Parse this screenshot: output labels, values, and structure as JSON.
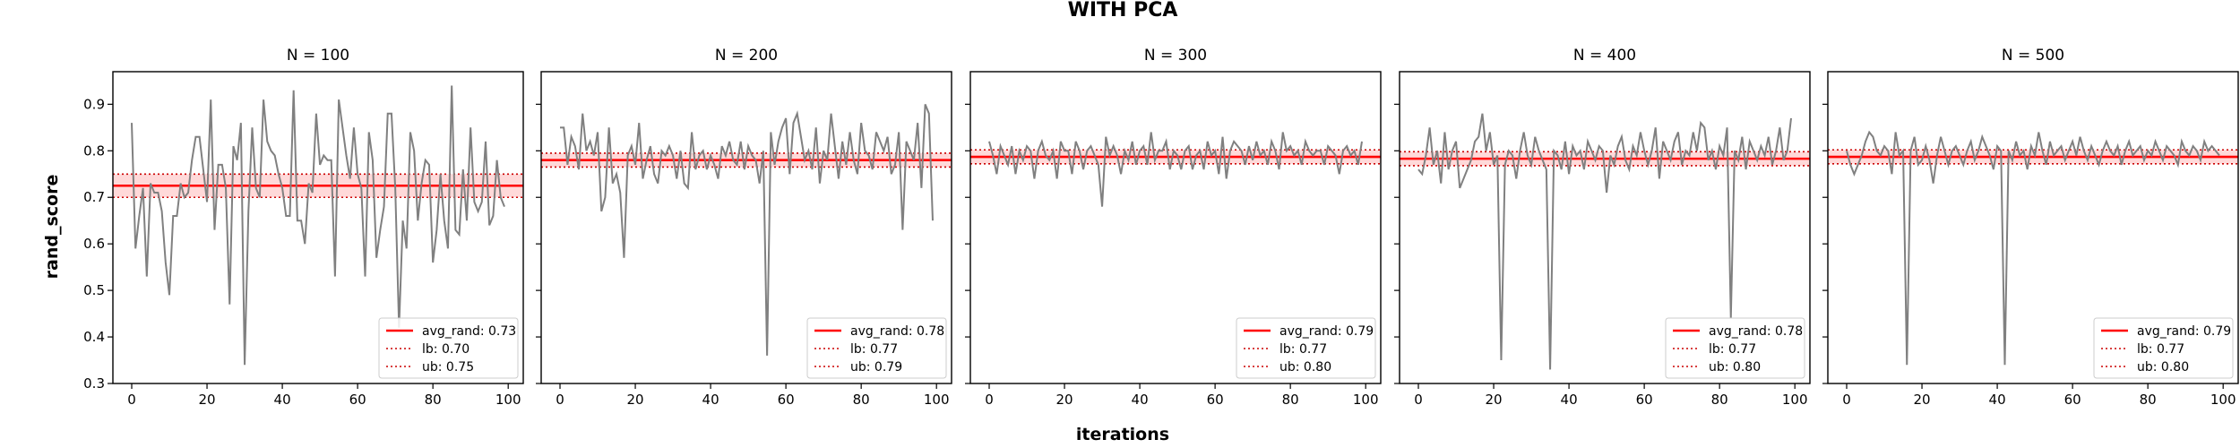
{
  "figure": {
    "suptitle": "WITH PCA",
    "xlabel": "iterations",
    "ylabel": "rand_score"
  },
  "colors": {
    "series": "#808080",
    "mean_line": "#ff0000",
    "band_fill": "#ffd9d9",
    "bound_line": "#cc0000"
  },
  "chart_data": [
    {
      "type": "line",
      "title": "N = 100",
      "xlim": [
        -5,
        104
      ],
      "ylim": [
        0.3,
        0.97
      ],
      "xticks": [
        0,
        20,
        40,
        60,
        80,
        100
      ],
      "yticks": [
        0.3,
        0.4,
        0.5,
        0.6,
        0.7,
        0.8,
        0.9
      ],
      "ytick_labels_visible": true,
      "grid": false,
      "avg": 0.725,
      "lb": 0.7,
      "ub": 0.75,
      "legend_position": "lower-right",
      "legend": [
        "avg_rand: 0.73",
        "lb: 0.70",
        "ub: 0.75"
      ],
      "y": [
        0.86,
        0.59,
        0.66,
        0.72,
        0.53,
        0.73,
        0.71,
        0.71,
        0.67,
        0.56,
        0.49,
        0.66,
        0.66,
        0.73,
        0.7,
        0.71,
        0.78,
        0.83,
        0.83,
        0.76,
        0.69,
        0.91,
        0.63,
        0.77,
        0.77,
        0.72,
        0.47,
        0.81,
        0.78,
        0.86,
        0.34,
        0.67,
        0.85,
        0.72,
        0.7,
        0.91,
        0.82,
        0.8,
        0.79,
        0.75,
        0.72,
        0.66,
        0.66,
        0.93,
        0.65,
        0.65,
        0.6,
        0.73,
        0.71,
        0.88,
        0.77,
        0.79,
        0.78,
        0.78,
        0.53,
        0.91,
        0.85,
        0.79,
        0.74,
        0.85,
        0.75,
        0.72,
        0.53,
        0.84,
        0.78,
        0.57,
        0.63,
        0.68,
        0.88,
        0.88,
        0.72,
        0.42,
        0.65,
        0.59,
        0.84,
        0.8,
        0.65,
        0.73,
        0.78,
        0.77,
        0.56,
        0.63,
        0.75,
        0.65,
        0.59,
        0.94,
        0.63,
        0.62,
        0.76,
        0.65,
        0.85,
        0.69,
        0.67,
        0.69,
        0.82,
        0.64,
        0.66,
        0.78,
        0.7,
        0.68
      ]
    },
    {
      "type": "line",
      "title": "N = 200",
      "xlim": [
        -5,
        104
      ],
      "ylim": [
        0.3,
        0.97
      ],
      "xticks": [
        0,
        20,
        40,
        60,
        80,
        100
      ],
      "yticks": [
        0.3,
        0.4,
        0.5,
        0.6,
        0.7,
        0.8,
        0.9
      ],
      "ytick_labels_visible": false,
      "grid": false,
      "avg": 0.78,
      "lb": 0.765,
      "ub": 0.795,
      "legend_position": "lower-right",
      "legend": [
        "avg_rand: 0.78",
        "lb: 0.77",
        "ub: 0.79"
      ],
      "y": [
        0.85,
        0.85,
        0.77,
        0.83,
        0.81,
        0.76,
        0.88,
        0.8,
        0.82,
        0.79,
        0.84,
        0.67,
        0.7,
        0.85,
        0.73,
        0.75,
        0.71,
        0.57,
        0.79,
        0.81,
        0.77,
        0.86,
        0.74,
        0.78,
        0.81,
        0.75,
        0.73,
        0.8,
        0.79,
        0.81,
        0.79,
        0.74,
        0.8,
        0.73,
        0.72,
        0.84,
        0.76,
        0.79,
        0.8,
        0.76,
        0.79,
        0.77,
        0.74,
        0.81,
        0.79,
        0.82,
        0.78,
        0.77,
        0.82,
        0.76,
        0.81,
        0.79,
        0.78,
        0.73,
        0.8,
        0.36,
        0.84,
        0.77,
        0.82,
        0.85,
        0.87,
        0.75,
        0.86,
        0.88,
        0.83,
        0.78,
        0.8,
        0.76,
        0.85,
        0.73,
        0.8,
        0.78,
        0.88,
        0.81,
        0.74,
        0.82,
        0.77,
        0.84,
        0.78,
        0.75,
        0.86,
        0.8,
        0.79,
        0.76,
        0.84,
        0.82,
        0.8,
        0.83,
        0.75,
        0.77,
        0.84,
        0.63,
        0.82,
        0.8,
        0.78,
        0.86,
        0.72,
        0.9,
        0.88,
        0.65
      ]
    },
    {
      "type": "line",
      "title": "N = 300",
      "xlim": [
        -5,
        104
      ],
      "ylim": [
        0.3,
        0.97
      ],
      "xticks": [
        0,
        20,
        40,
        60,
        80,
        100
      ],
      "yticks": [
        0.3,
        0.4,
        0.5,
        0.6,
        0.7,
        0.8,
        0.9
      ],
      "ytick_labels_visible": false,
      "grid": false,
      "avg": 0.787,
      "lb": 0.772,
      "ub": 0.802,
      "legend_position": "lower-right",
      "legend": [
        "avg_rand: 0.79",
        "lb: 0.77",
        "ub: 0.80"
      ],
      "y": [
        0.82,
        0.79,
        0.75,
        0.81,
        0.79,
        0.77,
        0.81,
        0.75,
        0.8,
        0.78,
        0.81,
        0.8,
        0.74,
        0.8,
        0.82,
        0.79,
        0.78,
        0.8,
        0.74,
        0.82,
        0.8,
        0.8,
        0.75,
        0.82,
        0.8,
        0.76,
        0.8,
        0.81,
        0.79,
        0.77,
        0.68,
        0.83,
        0.79,
        0.81,
        0.79,
        0.75,
        0.8,
        0.78,
        0.82,
        0.77,
        0.8,
        0.81,
        0.77,
        0.84,
        0.78,
        0.8,
        0.8,
        0.82,
        0.76,
        0.8,
        0.79,
        0.76,
        0.8,
        0.81,
        0.76,
        0.79,
        0.8,
        0.76,
        0.82,
        0.79,
        0.8,
        0.75,
        0.83,
        0.74,
        0.8,
        0.82,
        0.81,
        0.8,
        0.77,
        0.81,
        0.78,
        0.82,
        0.79,
        0.8,
        0.77,
        0.82,
        0.8,
        0.76,
        0.84,
        0.8,
        0.81,
        0.79,
        0.8,
        0.77,
        0.82,
        0.8,
        0.79,
        0.8,
        0.8,
        0.77,
        0.81,
        0.8,
        0.79,
        0.75,
        0.8,
        0.81,
        0.79,
        0.8,
        0.77,
        0.82
      ]
    },
    {
      "type": "line",
      "title": "N = 400",
      "xlim": [
        -5,
        104
      ],
      "ylim": [
        0.3,
        0.97
      ],
      "xticks": [
        0,
        20,
        40,
        60,
        80,
        100
      ],
      "yticks": [
        0.3,
        0.4,
        0.5,
        0.6,
        0.7,
        0.8,
        0.9
      ],
      "ytick_labels_visible": false,
      "grid": false,
      "avg": 0.783,
      "lb": 0.768,
      "ub": 0.798,
      "legend_position": "lower-right",
      "legend": [
        "avg_rand: 0.78",
        "lb: 0.77",
        "ub: 0.80"
      ],
      "y": [
        0.76,
        0.75,
        0.79,
        0.85,
        0.77,
        0.8,
        0.73,
        0.84,
        0.76,
        0.8,
        0.82,
        0.72,
        0.74,
        0.76,
        0.78,
        0.82,
        0.83,
        0.88,
        0.8,
        0.84,
        0.77,
        0.79,
        0.35,
        0.77,
        0.8,
        0.79,
        0.74,
        0.8,
        0.84,
        0.79,
        0.77,
        0.83,
        0.8,
        0.78,
        0.76,
        0.33,
        0.8,
        0.79,
        0.76,
        0.82,
        0.75,
        0.81,
        0.79,
        0.8,
        0.76,
        0.82,
        0.8,
        0.78,
        0.81,
        0.8,
        0.71,
        0.79,
        0.77,
        0.81,
        0.83,
        0.78,
        0.76,
        0.81,
        0.79,
        0.84,
        0.8,
        0.77,
        0.8,
        0.85,
        0.74,
        0.82,
        0.8,
        0.78,
        0.82,
        0.84,
        0.77,
        0.8,
        0.79,
        0.84,
        0.8,
        0.86,
        0.85,
        0.78,
        0.8,
        0.76,
        0.81,
        0.79,
        0.85,
        0.44,
        0.8,
        0.78,
        0.83,
        0.76,
        0.82,
        0.8,
        0.78,
        0.81,
        0.79,
        0.83,
        0.77,
        0.8,
        0.85,
        0.78,
        0.8,
        0.87
      ]
    },
    {
      "type": "line",
      "title": "N = 500",
      "xlim": [
        -5,
        104
      ],
      "ylim": [
        0.3,
        0.97
      ],
      "xticks": [
        0,
        20,
        40,
        60,
        80,
        100
      ],
      "yticks": [
        0.3,
        0.4,
        0.5,
        0.6,
        0.7,
        0.8,
        0.9
      ],
      "ytick_labels_visible": false,
      "grid": false,
      "avg": 0.787,
      "lb": 0.772,
      "ub": 0.802,
      "legend_position": "lower-right",
      "legend": [
        "avg_rand: 0.79",
        "lb: 0.77",
        "ub: 0.80"
      ],
      "y": [
        0.8,
        0.77,
        0.75,
        0.77,
        0.79,
        0.82,
        0.84,
        0.83,
        0.8,
        0.79,
        0.81,
        0.8,
        0.75,
        0.84,
        0.79,
        0.8,
        0.34,
        0.8,
        0.83,
        0.77,
        0.78,
        0.81,
        0.78,
        0.73,
        0.79,
        0.83,
        0.8,
        0.77,
        0.8,
        0.81,
        0.79,
        0.77,
        0.8,
        0.82,
        0.78,
        0.8,
        0.83,
        0.81,
        0.79,
        0.76,
        0.81,
        0.8,
        0.34,
        0.8,
        0.78,
        0.82,
        0.79,
        0.8,
        0.76,
        0.81,
        0.79,
        0.84,
        0.8,
        0.77,
        0.82,
        0.79,
        0.8,
        0.81,
        0.78,
        0.8,
        0.82,
        0.79,
        0.83,
        0.8,
        0.78,
        0.81,
        0.79,
        0.77,
        0.8,
        0.82,
        0.8,
        0.79,
        0.81,
        0.77,
        0.8,
        0.82,
        0.79,
        0.8,
        0.81,
        0.78,
        0.8,
        0.79,
        0.82,
        0.8,
        0.78,
        0.81,
        0.8,
        0.79,
        0.77,
        0.82,
        0.8,
        0.79,
        0.81,
        0.8,
        0.78,
        0.82,
        0.8,
        0.81,
        0.8,
        0.79
      ]
    }
  ]
}
